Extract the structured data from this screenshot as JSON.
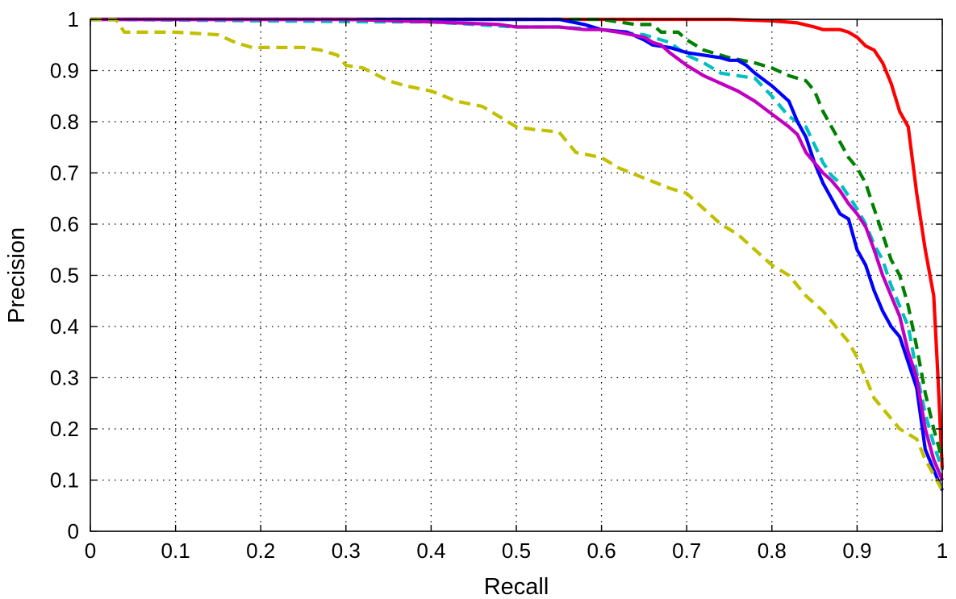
{
  "chart_data": {
    "type": "line",
    "title": "",
    "xlabel": "Recall",
    "ylabel": "Precision",
    "xlim": [
      0,
      1
    ],
    "ylim": [
      0,
      1
    ],
    "grid": true,
    "legend": "none",
    "xticks": [
      "0",
      "0.1",
      "0.2",
      "0.3",
      "0.4",
      "0.5",
      "0.6",
      "0.7",
      "0.8",
      "0.9",
      "1"
    ],
    "yticks": [
      "0",
      "0.1",
      "0.2",
      "0.3",
      "0.4",
      "0.5",
      "0.6",
      "0.7",
      "0.8",
      "0.9",
      "1"
    ],
    "series": [
      {
        "color": "#ff0000",
        "style": "solid",
        "points": [
          [
            0,
            1
          ],
          [
            0.5,
            1
          ],
          [
            0.7,
            1
          ],
          [
            0.75,
            1
          ],
          [
            0.8,
            0.997
          ],
          [
            0.83,
            0.993
          ],
          [
            0.85,
            0.985
          ],
          [
            0.86,
            0.98
          ],
          [
            0.88,
            0.98
          ],
          [
            0.89,
            0.975
          ],
          [
            0.9,
            0.965
          ],
          [
            0.91,
            0.948
          ],
          [
            0.92,
            0.94
          ],
          [
            0.93,
            0.915
          ],
          [
            0.94,
            0.875
          ],
          [
            0.95,
            0.82
          ],
          [
            0.96,
            0.79
          ],
          [
            0.97,
            0.66
          ],
          [
            0.98,
            0.55
          ],
          [
            0.99,
            0.46
          ],
          [
            0.995,
            0.3
          ],
          [
            1,
            0.12
          ]
        ]
      },
      {
        "color": "#008000",
        "style": "dashed",
        "points": [
          [
            0,
            1
          ],
          [
            0.6,
            1
          ],
          [
            0.64,
            0.99
          ],
          [
            0.66,
            0.99
          ],
          [
            0.67,
            0.975
          ],
          [
            0.68,
            0.975
          ],
          [
            0.69,
            0.975
          ],
          [
            0.7,
            0.96
          ],
          [
            0.72,
            0.94
          ],
          [
            0.75,
            0.925
          ],
          [
            0.78,
            0.915
          ],
          [
            0.8,
            0.905
          ],
          [
            0.82,
            0.89
          ],
          [
            0.84,
            0.88
          ],
          [
            0.85,
            0.86
          ],
          [
            0.86,
            0.82
          ],
          [
            0.87,
            0.79
          ],
          [
            0.88,
            0.76
          ],
          [
            0.89,
            0.73
          ],
          [
            0.9,
            0.71
          ],
          [
            0.91,
            0.68
          ],
          [
            0.92,
            0.63
          ],
          [
            0.93,
            0.58
          ],
          [
            0.94,
            0.53
          ],
          [
            0.95,
            0.5
          ],
          [
            0.96,
            0.44
          ],
          [
            0.97,
            0.36
          ],
          [
            0.98,
            0.27
          ],
          [
            0.99,
            0.2
          ],
          [
            1,
            0.14
          ]
        ]
      },
      {
        "color": "#00c0c0",
        "style": "dashed",
        "points": [
          [
            0,
            1
          ],
          [
            0.35,
            0.995
          ],
          [
            0.4,
            0.995
          ],
          [
            0.5,
            0.985
          ],
          [
            0.55,
            0.985
          ],
          [
            0.6,
            0.98
          ],
          [
            0.62,
            0.975
          ],
          [
            0.65,
            0.97
          ],
          [
            0.68,
            0.955
          ],
          [
            0.7,
            0.93
          ],
          [
            0.72,
            0.915
          ],
          [
            0.74,
            0.895
          ],
          [
            0.76,
            0.89
          ],
          [
            0.78,
            0.885
          ],
          [
            0.8,
            0.85
          ],
          [
            0.82,
            0.81
          ],
          [
            0.84,
            0.79
          ],
          [
            0.86,
            0.72
          ],
          [
            0.87,
            0.695
          ],
          [
            0.88,
            0.68
          ],
          [
            0.89,
            0.655
          ],
          [
            0.9,
            0.63
          ],
          [
            0.91,
            0.6
          ],
          [
            0.92,
            0.56
          ],
          [
            0.93,
            0.53
          ],
          [
            0.94,
            0.48
          ],
          [
            0.95,
            0.44
          ],
          [
            0.96,
            0.4
          ],
          [
            0.97,
            0.31
          ],
          [
            0.98,
            0.23
          ],
          [
            0.99,
            0.17
          ],
          [
            1,
            0.12
          ]
        ]
      },
      {
        "color": "#0000ff",
        "style": "solid",
        "points": [
          [
            0,
            1
          ],
          [
            0.55,
            1
          ],
          [
            0.58,
            0.99
          ],
          [
            0.6,
            0.98
          ],
          [
            0.63,
            0.975
          ],
          [
            0.65,
            0.96
          ],
          [
            0.66,
            0.95
          ],
          [
            0.68,
            0.945
          ],
          [
            0.7,
            0.935
          ],
          [
            0.72,
            0.93
          ],
          [
            0.74,
            0.925
          ],
          [
            0.75,
            0.92
          ],
          [
            0.76,
            0.92
          ],
          [
            0.77,
            0.91
          ],
          [
            0.78,
            0.895
          ],
          [
            0.8,
            0.87
          ],
          [
            0.82,
            0.84
          ],
          [
            0.83,
            0.8
          ],
          [
            0.84,
            0.77
          ],
          [
            0.85,
            0.72
          ],
          [
            0.86,
            0.68
          ],
          [
            0.87,
            0.65
          ],
          [
            0.88,
            0.62
          ],
          [
            0.89,
            0.61
          ],
          [
            0.9,
            0.55
          ],
          [
            0.91,
            0.52
          ],
          [
            0.92,
            0.47
          ],
          [
            0.93,
            0.43
          ],
          [
            0.94,
            0.4
          ],
          [
            0.95,
            0.38
          ],
          [
            0.96,
            0.33
          ],
          [
            0.97,
            0.28
          ],
          [
            0.98,
            0.16
          ],
          [
            0.99,
            0.12
          ],
          [
            1,
            0.08
          ]
        ]
      },
      {
        "color": "#c000c0",
        "style": "solid",
        "points": [
          [
            0,
            1
          ],
          [
            0.3,
            1
          ],
          [
            0.4,
            0.995
          ],
          [
            0.48,
            0.99
          ],
          [
            0.5,
            0.985
          ],
          [
            0.55,
            0.985
          ],
          [
            0.58,
            0.98
          ],
          [
            0.6,
            0.98
          ],
          [
            0.62,
            0.975
          ],
          [
            0.65,
            0.965
          ],
          [
            0.66,
            0.955
          ],
          [
            0.67,
            0.95
          ],
          [
            0.68,
            0.935
          ],
          [
            0.7,
            0.91
          ],
          [
            0.72,
            0.89
          ],
          [
            0.74,
            0.875
          ],
          [
            0.76,
            0.86
          ],
          [
            0.78,
            0.84
          ],
          [
            0.8,
            0.815
          ],
          [
            0.82,
            0.79
          ],
          [
            0.83,
            0.775
          ],
          [
            0.84,
            0.74
          ],
          [
            0.85,
            0.72
          ],
          [
            0.86,
            0.7
          ],
          [
            0.87,
            0.685
          ],
          [
            0.88,
            0.665
          ],
          [
            0.89,
            0.64
          ],
          [
            0.9,
            0.62
          ],
          [
            0.91,
            0.595
          ],
          [
            0.92,
            0.55
          ],
          [
            0.93,
            0.5
          ],
          [
            0.94,
            0.46
          ],
          [
            0.95,
            0.42
          ],
          [
            0.96,
            0.35
          ],
          [
            0.97,
            0.3
          ],
          [
            0.98,
            0.2
          ],
          [
            0.99,
            0.14
          ],
          [
            1,
            0.1
          ]
        ]
      },
      {
        "color": "#c0c000",
        "style": "dashed",
        "points": [
          [
            0,
            1
          ],
          [
            0.03,
            1
          ],
          [
            0.04,
            0.975
          ],
          [
            0.1,
            0.975
          ],
          [
            0.15,
            0.97
          ],
          [
            0.17,
            0.955
          ],
          [
            0.19,
            0.945
          ],
          [
            0.25,
            0.945
          ],
          [
            0.27,
            0.94
          ],
          [
            0.29,
            0.93
          ],
          [
            0.3,
            0.91
          ],
          [
            0.32,
            0.905
          ],
          [
            0.35,
            0.88
          ],
          [
            0.37,
            0.87
          ],
          [
            0.4,
            0.86
          ],
          [
            0.43,
            0.84
          ],
          [
            0.46,
            0.83
          ],
          [
            0.48,
            0.81
          ],
          [
            0.5,
            0.79
          ],
          [
            0.52,
            0.785
          ],
          [
            0.55,
            0.78
          ],
          [
            0.57,
            0.74
          ],
          [
            0.6,
            0.73
          ],
          [
            0.62,
            0.71
          ],
          [
            0.65,
            0.69
          ],
          [
            0.68,
            0.67
          ],
          [
            0.7,
            0.66
          ],
          [
            0.72,
            0.63
          ],
          [
            0.74,
            0.6
          ],
          [
            0.76,
            0.58
          ],
          [
            0.78,
            0.55
          ],
          [
            0.8,
            0.52
          ],
          [
            0.82,
            0.5
          ],
          [
            0.84,
            0.46
          ],
          [
            0.86,
            0.43
          ],
          [
            0.87,
            0.41
          ],
          [
            0.88,
            0.39
          ],
          [
            0.89,
            0.37
          ],
          [
            0.9,
            0.34
          ],
          [
            0.91,
            0.3
          ],
          [
            0.92,
            0.26
          ],
          [
            0.93,
            0.24
          ],
          [
            0.95,
            0.2
          ],
          [
            0.97,
            0.18
          ],
          [
            0.98,
            0.14
          ],
          [
            1,
            0.08
          ]
        ]
      }
    ]
  }
}
